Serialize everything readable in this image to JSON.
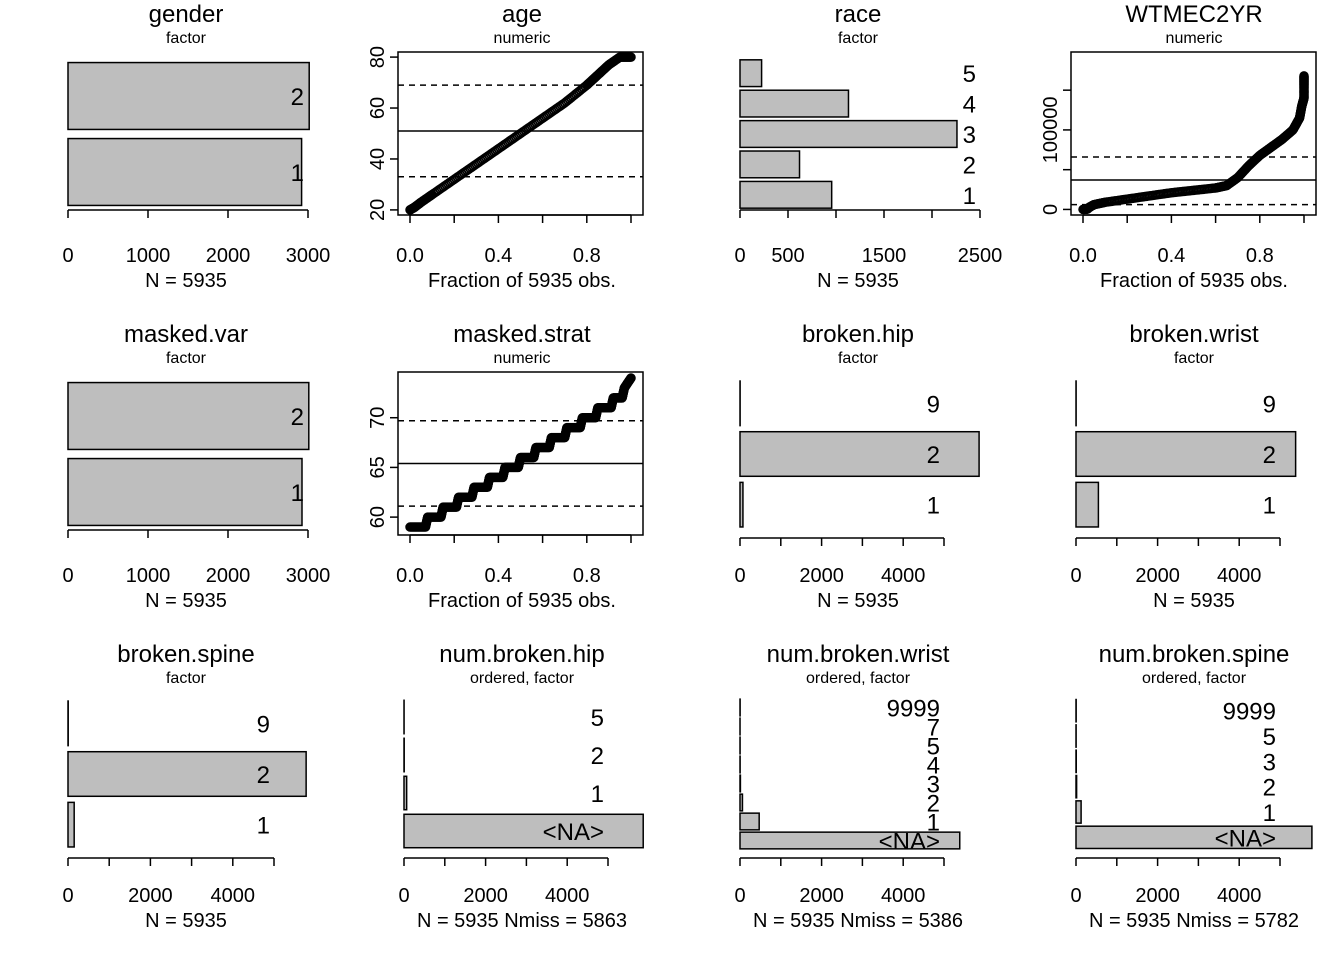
{
  "chart_data": [
    {
      "name": "gender",
      "type": "bar",
      "orientation": "horizontal",
      "subtitle": "factor",
      "categories": [
        "1",
        "2"
      ],
      "values": [
        2920,
        3015
      ],
      "xlim": [
        0,
        3000
      ],
      "xticks": [
        0,
        1000,
        2000,
        3000
      ],
      "footer": "N = 5935"
    },
    {
      "name": "age",
      "type": "scatter",
      "subtitle": "numeric",
      "x": [
        0.0,
        0.02,
        0.05,
        0.1,
        0.2,
        0.3,
        0.4,
        0.5,
        0.6,
        0.7,
        0.8,
        0.85,
        0.9,
        0.95,
        1.0
      ],
      "y": [
        20,
        21,
        23,
        26,
        32,
        38,
        44,
        50,
        56,
        62,
        69,
        73,
        77,
        80,
        80
      ],
      "median": 51,
      "quartiles": [
        33,
        69
      ],
      "ylim": [
        18,
        82
      ],
      "yticks": [
        20,
        40,
        60,
        80
      ],
      "xlim": [
        0,
        1
      ],
      "xticks": [
        "0.0",
        "0.4",
        "0.8"
      ],
      "xlabel": "Fraction of 5935 obs."
    },
    {
      "name": "race",
      "type": "bar",
      "orientation": "horizontal",
      "subtitle": "factor",
      "categories": [
        "1",
        "2",
        "3",
        "4",
        "5"
      ],
      "values": [
        955,
        620,
        2260,
        1130,
        225
      ],
      "xlim": [
        0,
        2500
      ],
      "xticks": [
        0,
        500,
        1500,
        2500
      ],
      "xminor": [
        1000,
        2000
      ],
      "footer": "N = 5935"
    },
    {
      "name": "WTMEC2YR",
      "type": "scatter",
      "subtitle": "numeric",
      "x": [
        0.0,
        0.02,
        0.03,
        0.05,
        0.1,
        0.2,
        0.3,
        0.4,
        0.5,
        0.6,
        0.65,
        0.7,
        0.75,
        0.8,
        0.85,
        0.9,
        0.95,
        0.98,
        0.99,
        1.0,
        1.0,
        1.0
      ],
      "y": [
        0,
        500,
        3000,
        6000,
        9000,
        13000,
        17000,
        21000,
        24000,
        27000,
        30000,
        40000,
        55000,
        68000,
        78000,
        88000,
        100000,
        115000,
        130000,
        140000,
        156000,
        168000
      ],
      "median": 37000,
      "quartiles": [
        6000,
        66000
      ],
      "ylim": [
        -7000,
        198000
      ],
      "yticks": [
        0,
        100000
      ],
      "yminor": [
        50000,
        150000
      ],
      "xlim": [
        0,
        1
      ],
      "xticks": [
        "0.0",
        "0.4",
        "0.8"
      ],
      "xlabel": "Fraction of 5935 obs."
    },
    {
      "name": "masked.var",
      "type": "bar",
      "orientation": "horizontal",
      "subtitle": "factor",
      "categories": [
        "1",
        "2"
      ],
      "values": [
        2925,
        3010
      ],
      "xlim": [
        0,
        3000
      ],
      "xticks": [
        0,
        1000,
        2000,
        3000
      ],
      "footer": "N = 5935"
    },
    {
      "name": "masked.strat",
      "type": "scatter",
      "subtitle": "numeric",
      "x": [
        0.0,
        0.07,
        0.08,
        0.14,
        0.15,
        0.21,
        0.22,
        0.28,
        0.29,
        0.35,
        0.36,
        0.42,
        0.43,
        0.49,
        0.5,
        0.56,
        0.57,
        0.63,
        0.64,
        0.7,
        0.71,
        0.77,
        0.78,
        0.84,
        0.85,
        0.91,
        0.92,
        0.96,
        0.97,
        1.0
      ],
      "y": [
        59,
        59,
        60,
        60,
        61,
        61,
        62,
        62,
        63,
        63,
        64,
        64,
        65,
        65,
        66,
        66,
        67,
        67,
        68,
        68,
        69,
        69,
        70,
        70,
        71,
        71,
        72,
        72,
        73,
        74
      ],
      "median": 65.4,
      "quartiles": [
        61.1,
        69.7
      ],
      "ylim": [
        58.2,
        74.6
      ],
      "yticks": [
        60,
        65,
        70
      ],
      "xlim": [
        0,
        1
      ],
      "xticks": [
        "0.0",
        "0.4",
        "0.8"
      ],
      "xlabel": "Fraction of 5935 obs."
    },
    {
      "name": "broken.hip",
      "type": "bar",
      "orientation": "horizontal",
      "subtitle": "factor",
      "categories": [
        "1",
        "2",
        "9"
      ],
      "values": [
        72,
        5860,
        3
      ],
      "xlim": [
        0,
        5000
      ],
      "xticks": [
        0,
        2000,
        4000
      ],
      "xminor": [
        1000,
        3000,
        5000
      ],
      "footer": "N = 5935"
    },
    {
      "name": "broken.wrist",
      "type": "bar",
      "orientation": "horizontal",
      "subtitle": "factor",
      "categories": [
        "1",
        "2",
        "9"
      ],
      "values": [
        549,
        5383,
        3
      ],
      "xlim": [
        0,
        5000
      ],
      "xticks": [
        0,
        2000,
        4000
      ],
      "xminor": [
        1000,
        3000,
        5000
      ],
      "footer": "N = 5935"
    },
    {
      "name": "broken.spine",
      "type": "bar",
      "orientation": "horizontal",
      "subtitle": "factor",
      "categories": [
        "1",
        "2",
        "9"
      ],
      "values": [
        150,
        5780,
        5
      ],
      "xlim": [
        0,
        5000
      ],
      "xticks": [
        0,
        2000,
        4000
      ],
      "xminor": [
        1000,
        3000,
        5000
      ],
      "footer": "N = 5935"
    },
    {
      "name": "num.broken.hip",
      "type": "bar",
      "orientation": "horizontal",
      "subtitle": "ordered, factor",
      "categories": [
        "<NA>",
        "1",
        "2",
        "5"
      ],
      "values": [
        5863,
        65,
        5,
        2
      ],
      "xlim": [
        0,
        5000
      ],
      "xticks": [
        0,
        2000,
        4000
      ],
      "xminor": [
        1000,
        3000,
        5000
      ],
      "footer": "N = 5935    Nmiss = 5863"
    },
    {
      "name": "num.broken.wrist",
      "type": "bar",
      "orientation": "horizontal",
      "subtitle": "ordered, factor",
      "categories": [
        "<NA>",
        "1",
        "2",
        "3",
        "4",
        "5",
        "7",
        "9999"
      ],
      "values": [
        5386,
        470,
        60,
        10,
        3,
        2,
        1,
        3
      ],
      "xlim": [
        0,
        5000
      ],
      "xticks": [
        0,
        2000,
        4000
      ],
      "xminor": [
        1000,
        3000,
        5000
      ],
      "footer": "N = 5935    Nmiss = 5386"
    },
    {
      "name": "num.broken.spine",
      "type": "bar",
      "orientation": "horizontal",
      "subtitle": "ordered, factor",
      "categories": [
        "<NA>",
        "1",
        "2",
        "3",
        "5",
        "9999"
      ],
      "values": [
        5782,
        125,
        15,
        6,
        3,
        4
      ],
      "xlim": [
        0,
        5000
      ],
      "xticks": [
        0,
        2000,
        4000
      ],
      "xminor": [
        1000,
        3000,
        5000
      ],
      "footer": "N = 5935    Nmiss = 5782"
    }
  ]
}
